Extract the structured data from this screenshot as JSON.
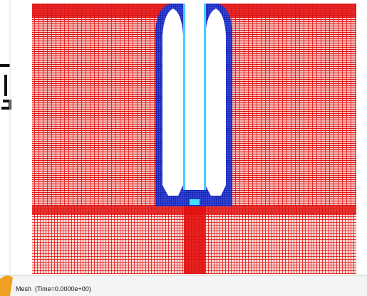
{
  "status_bar": {
    "text": "Mesh  (Time=0.0000e+00)"
  }
}
